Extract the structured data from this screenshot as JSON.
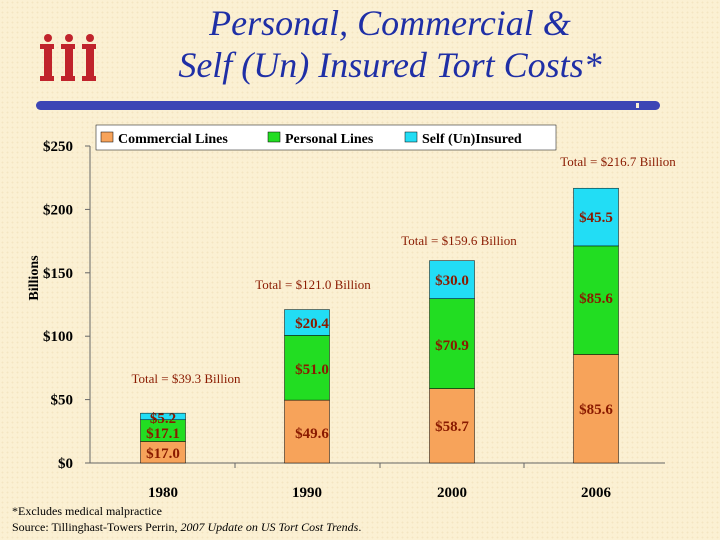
{
  "header": {
    "title_line1": "Personal, Commercial &",
    "title_line2": "Self (Un) Insured Tort Costs*",
    "logo_icon": "iii-logo-icon"
  },
  "colors": {
    "title": "#1f2fa6",
    "rule": "#3c45b5",
    "logo": "#c0232c",
    "commercial": "#f7a35a",
    "personal": "#22dd22",
    "self_insured": "#22ddf5",
    "label_text": "#8a1a00"
  },
  "chart_data": {
    "type": "bar",
    "stacked": true,
    "categories": [
      "1980",
      "1990",
      "2000",
      "2006"
    ],
    "series": [
      {
        "name": "Commercial Lines",
        "values": [
          17.0,
          49.6,
          58.7,
          85.6
        ],
        "labels": [
          "$17.0",
          "$49.6",
          "$58.7",
          "$85.6"
        ]
      },
      {
        "name": "Personal Lines",
        "values": [
          17.1,
          51.0,
          70.9,
          85.6
        ],
        "labels": [
          "$17.1",
          "$51.0",
          "$70.9",
          "$85.6"
        ]
      },
      {
        "name": "Self (Un)Insured",
        "values": [
          5.2,
          20.4,
          30.0,
          45.5
        ],
        "labels": [
          "$5.2",
          "$20.4",
          "$30.0",
          "$45.5"
        ]
      }
    ],
    "totals": [
      "Total = $39.3 Billion",
      "Total = $121.0 Billion",
      "Total = $159.6 Billion",
      "Total = $216.7 Billion"
    ],
    "ylabel": "Billions",
    "ytick_labels": [
      "$0",
      "$50",
      "$100",
      "$150",
      "$200",
      "$250"
    ],
    "yticks": [
      0,
      50,
      100,
      150,
      200,
      250
    ],
    "ylim": [
      0,
      250
    ],
    "grid": false,
    "legend_position": "top"
  },
  "footnotes": {
    "line1": "*Excludes medical malpractice",
    "line2_prefix": "Source: Tillinghast-Towers Perrin, ",
    "line2_italic": "2007 Update on US Tort Cost Trends",
    "line2_suffix": "."
  }
}
